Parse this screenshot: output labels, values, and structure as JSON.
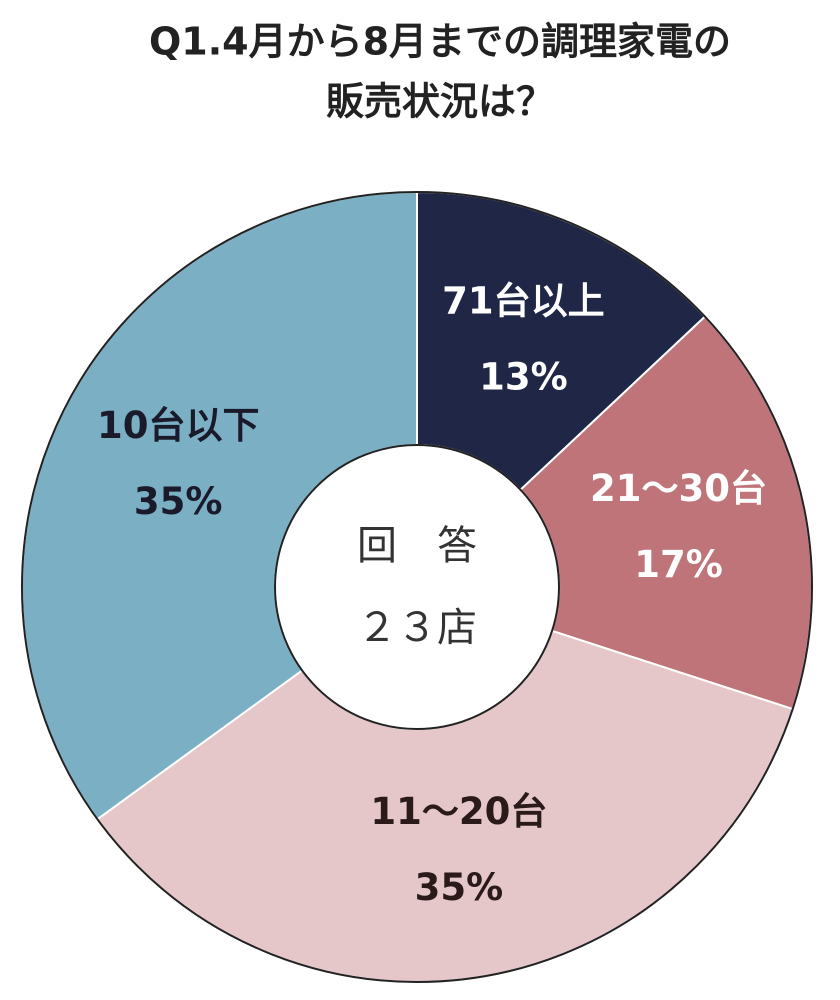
{
  "chart_data": {
    "type": "donut",
    "title": [
      "Q1.4月から8月までの調理家電の",
      "販売状況は？"
    ],
    "center_text": [
      "回　答",
      "２３店"
    ],
    "categories": [
      "71台以上",
      "21〜30台",
      "11〜20台",
      "10台以下"
    ],
    "values": [
      13,
      17,
      35,
      35
    ],
    "value_labels": [
      "13%",
      "17%",
      "35%",
      "35%"
    ],
    "colors": [
      "#1f2646",
      "#bf7479",
      "#e5c6c9",
      "#7aafc4"
    ],
    "label_colors": [
      "#ffffff",
      "#ffffff",
      "#2a1a1a",
      "#1a1a2a"
    ]
  }
}
